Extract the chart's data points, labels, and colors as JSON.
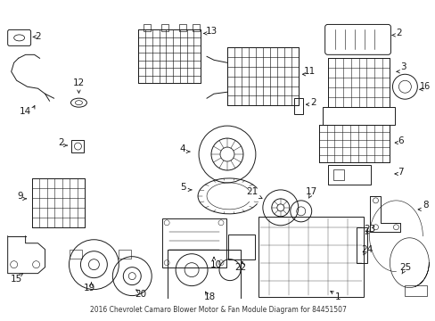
{
  "title": "2016 Chevrolet Camaro Blower Motor & Fan Module Diagram for 84451507",
  "bg_color": "#ffffff",
  "lc": "#1a1a1a",
  "fig_width": 4.89,
  "fig_height": 3.6,
  "dpi": 100
}
